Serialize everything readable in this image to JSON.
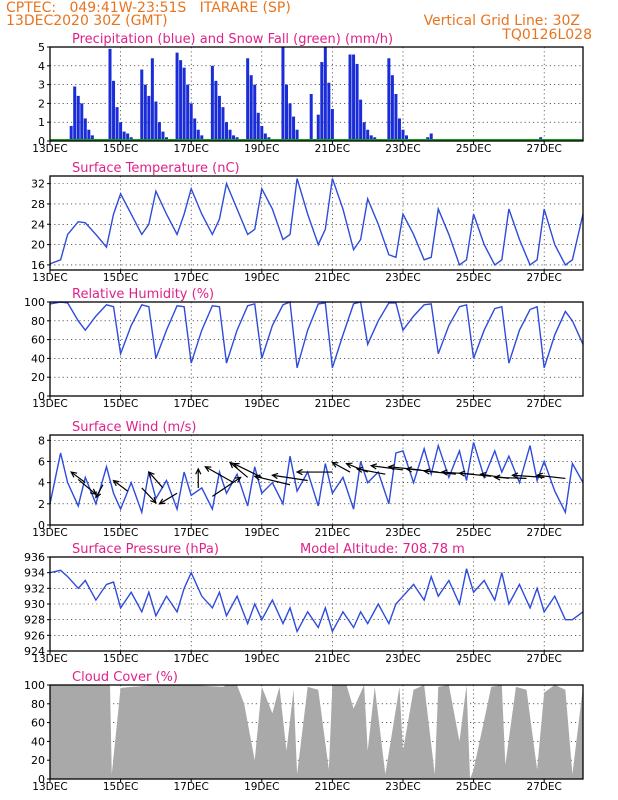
{
  "header": {
    "line1_left": "CPTEC:   049:41W-23:51S   ITARARE (SP)",
    "line2_left": "13DEC2020 30Z (GMT)",
    "line2_right": "Vertical Grid Line: 30Z",
    "line3_right": "TQ0126L028",
    "color": "#e8741e"
  },
  "x_axis_ticks": [
    "13DEC",
    "15DEC",
    "17DEC",
    "19DEC",
    "21DEC",
    "23DEC",
    "25DEC",
    "27DEC"
  ],
  "x_range_days": [
    13.0,
    28.1
  ],
  "colors": {
    "title": "#e0218a",
    "line": "#2e4bdc",
    "precip": "#1a2bd8",
    "snow": "#1a9a1a",
    "cloud": "#a9a9a9",
    "grid": "#000000"
  },
  "chart_data": [
    {
      "id": "precip",
      "type": "bar",
      "title": "Precipitation (blue) and Snow Fall (green) (mm/h)",
      "ylim": [
        0,
        5
      ],
      "yticks": [
        0,
        1,
        2,
        3,
        4,
        5
      ],
      "series": [
        {
          "name": "Precipitation",
          "x": [
            13.6,
            13.7,
            13.8,
            13.9,
            14.0,
            14.1,
            14.2,
            14.7,
            14.8,
            14.9,
            15.0,
            15.1,
            15.2,
            15.3,
            15.6,
            15.7,
            15.8,
            15.9,
            16.0,
            16.1,
            16.2,
            16.3,
            16.6,
            16.7,
            16.8,
            16.9,
            17.0,
            17.1,
            17.2,
            17.3,
            17.6,
            17.7,
            17.8,
            17.9,
            18.0,
            18.1,
            18.2,
            18.3,
            18.6,
            18.7,
            18.8,
            18.9,
            19.0,
            19.1,
            19.2,
            19.6,
            19.7,
            19.8,
            19.9,
            20.0,
            20.4,
            20.6,
            20.7,
            20.8,
            20.9,
            21.0,
            21.5,
            21.6,
            21.7,
            21.8,
            21.9,
            22.0,
            22.1,
            22.2,
            22.6,
            22.7,
            22.8,
            22.9,
            23.0,
            23.1,
            23.5,
            23.7,
            23.8,
            24.0,
            26.9
          ],
          "values": [
            0.8,
            2.9,
            2.4,
            2.0,
            1.2,
            0.6,
            0.3,
            4.9,
            3.2,
            1.8,
            1.0,
            0.5,
            0.4,
            0.2,
            3.8,
            3.0,
            2.4,
            4.4,
            2.1,
            1.0,
            0.5,
            0.2,
            4.7,
            4.3,
            3.9,
            3.0,
            2.0,
            1.2,
            0.6,
            0.3,
            4.0,
            3.2,
            2.4,
            1.8,
            1.0,
            0.6,
            0.3,
            0.2,
            4.4,
            3.5,
            3.0,
            1.5,
            0.8,
            0.4,
            0.2,
            5.0,
            3.0,
            2.0,
            1.3,
            0.6,
            2.5,
            1.4,
            4.2,
            5.0,
            3.1,
            1.7,
            4.6,
            4.6,
            4.1,
            2.2,
            1.0,
            0.6,
            0.3,
            0.2,
            4.4,
            3.5,
            2.5,
            1.2,
            0.6,
            0.3,
            0.1,
            0.2,
            0.4,
            0.1,
            0.2
          ]
        },
        {
          "name": "Snow Fall",
          "x": [
            13.0,
            28.1
          ],
          "values": [
            0.0,
            0.0
          ]
        }
      ]
    },
    {
      "id": "temp",
      "type": "line",
      "title": "Surface Temperature (nC)",
      "ylim": [
        15,
        33.5
      ],
      "yticks": [
        16,
        20,
        24,
        28,
        32
      ],
      "series": [
        {
          "name": "",
          "x": [
            13.0,
            13.3,
            13.5,
            13.8,
            14.0,
            14.3,
            14.6,
            14.8,
            15.0,
            15.3,
            15.6,
            15.8,
            16.0,
            16.3,
            16.6,
            16.8,
            17.0,
            17.3,
            17.6,
            17.8,
            18.0,
            18.3,
            18.6,
            18.8,
            19.0,
            19.3,
            19.6,
            19.8,
            20.0,
            20.3,
            20.6,
            20.8,
            21.0,
            21.3,
            21.6,
            21.8,
            22.0,
            22.3,
            22.6,
            22.8,
            23.0,
            23.3,
            23.6,
            23.8,
            24.0,
            24.3,
            24.6,
            24.8,
            25.0,
            25.3,
            25.6,
            25.8,
            26.0,
            26.3,
            26.6,
            26.8,
            27.0,
            27.3,
            27.6,
            27.8,
            28.1
          ],
          "values": [
            16.2,
            17.0,
            22.0,
            24.5,
            24.3,
            22.0,
            19.5,
            26.0,
            30.0,
            26.0,
            22.0,
            24.0,
            30.5,
            26.0,
            22.0,
            26.0,
            31.0,
            26.0,
            22.0,
            25.0,
            32.0,
            27.0,
            22.0,
            23.0,
            31.0,
            27.0,
            21.0,
            22.0,
            33.0,
            26.0,
            20.0,
            23.0,
            33.0,
            27.0,
            19.0,
            21.0,
            29.0,
            24.0,
            18.0,
            17.5,
            26.0,
            22.0,
            17.0,
            17.5,
            27.0,
            22.0,
            16.0,
            17.0,
            26.0,
            20.0,
            16.0,
            17.0,
            27.0,
            21.0,
            16.0,
            17.0,
            27.0,
            20.0,
            16.0,
            17.0,
            26.0
          ]
        }
      ]
    },
    {
      "id": "rh",
      "type": "line",
      "title": "Relative Humidity (%)",
      "ylim": [
        0,
        100
      ],
      "yticks": [
        0,
        20,
        40,
        60,
        80,
        100
      ],
      "series": [
        {
          "name": "",
          "x": [
            13.0,
            13.3,
            13.5,
            13.8,
            14.0,
            14.3,
            14.6,
            14.8,
            15.0,
            15.3,
            15.6,
            15.8,
            16.0,
            16.3,
            16.6,
            16.8,
            17.0,
            17.3,
            17.6,
            17.8,
            18.0,
            18.3,
            18.6,
            18.8,
            19.0,
            19.3,
            19.6,
            19.8,
            20.0,
            20.3,
            20.6,
            20.8,
            21.0,
            21.3,
            21.6,
            21.8,
            22.0,
            22.3,
            22.6,
            22.8,
            23.0,
            23.3,
            23.6,
            23.8,
            24.0,
            24.3,
            24.6,
            24.8,
            25.0,
            25.3,
            25.6,
            25.8,
            26.0,
            26.3,
            26.6,
            26.8,
            27.0,
            27.3,
            27.6,
            27.8,
            28.1
          ],
          "values": [
            98,
            100,
            99,
            80,
            70,
            85,
            97,
            95,
            45,
            75,
            97,
            95,
            40,
            70,
            96,
            95,
            35,
            70,
            96,
            95,
            35,
            70,
            96,
            98,
            40,
            75,
            97,
            100,
            30,
            70,
            98,
            99,
            30,
            65,
            98,
            100,
            55,
            80,
            99,
            99,
            70,
            85,
            97,
            98,
            45,
            75,
            95,
            97,
            40,
            70,
            93,
            95,
            35,
            70,
            92,
            95,
            30,
            65,
            90,
            80,
            55
          ]
        }
      ]
    },
    {
      "id": "wind",
      "type": "line",
      "title": "Surface Wind (m/s)",
      "ylim": [
        0,
        8.5
      ],
      "yticks": [
        0,
        2,
        4,
        6,
        8
      ],
      "series": [
        {
          "name": "",
          "x": [
            13.0,
            13.3,
            13.5,
            13.8,
            14.0,
            14.3,
            14.6,
            14.8,
            15.0,
            15.3,
            15.6,
            15.8,
            16.0,
            16.3,
            16.6,
            16.8,
            17.0,
            17.3,
            17.6,
            17.8,
            18.0,
            18.3,
            18.6,
            18.8,
            19.0,
            19.3,
            19.6,
            19.8,
            20.0,
            20.3,
            20.6,
            20.8,
            21.0,
            21.3,
            21.6,
            21.8,
            22.0,
            22.3,
            22.6,
            22.8,
            23.0,
            23.3,
            23.6,
            23.8,
            24.0,
            24.3,
            24.6,
            24.8,
            25.0,
            25.3,
            25.6,
            25.8,
            26.0,
            26.3,
            26.6,
            26.8,
            27.0,
            27.3,
            27.6,
            27.8,
            28.1
          ],
          "values": [
            2.0,
            6.8,
            4.0,
            1.8,
            4.5,
            2.0,
            5.5,
            3.0,
            1.5,
            4.0,
            1.2,
            5.0,
            2.5,
            4.2,
            1.5,
            5.0,
            2.8,
            3.5,
            1.5,
            5.0,
            3.0,
            4.8,
            1.8,
            5.5,
            3.0,
            4.0,
            2.0,
            6.5,
            3.2,
            5.0,
            1.8,
            5.8,
            3.0,
            4.5,
            1.5,
            6.0,
            4.0,
            5.0,
            2.0,
            6.8,
            7.0,
            4.0,
            7.2,
            4.8,
            7.5,
            4.5,
            7.0,
            4.2,
            7.8,
            4.5,
            7.0,
            5.0,
            6.5,
            4.0,
            7.5,
            4.2,
            6.0,
            3.2,
            1.2,
            5.8,
            4.0
          ]
        }
      ],
      "arrows": [
        {
          "x": 14.0,
          "y": 4.0,
          "dx": -0.4,
          "dy": 1.0
        },
        {
          "x": 13.8,
          "y": 4.3,
          "dx": 0.5,
          "dy": -1.4
        },
        {
          "x": 14.5,
          "y": 3.8,
          "dx": -0.2,
          "dy": -1.2
        },
        {
          "x": 15.2,
          "y": 3.2,
          "dx": -0.4,
          "dy": 1.0
        },
        {
          "x": 15.6,
          "y": 3.5,
          "dx": 0.4,
          "dy": -1.4
        },
        {
          "x": 16.2,
          "y": 3.5,
          "dx": -0.4,
          "dy": 1.5
        },
        {
          "x": 16.6,
          "y": 3.0,
          "dx": -0.5,
          "dy": -1.0
        },
        {
          "x": 17.2,
          "y": 3.5,
          "dx": 0.0,
          "dy": 1.8
        },
        {
          "x": 17.6,
          "y": 2.7,
          "dx": 0.8,
          "dy": 1.8
        },
        {
          "x": 18.2,
          "y": 4.0,
          "dx": -0.8,
          "dy": 1.5
        },
        {
          "x": 18.6,
          "y": 4.5,
          "dx": -0.5,
          "dy": 1.4
        },
        {
          "x": 19.0,
          "y": 4.5,
          "dx": -0.8,
          "dy": 1.3
        },
        {
          "x": 19.8,
          "y": 3.8,
          "dx": -1.0,
          "dy": 0.8
        },
        {
          "x": 20.3,
          "y": 4.2,
          "dx": -1.0,
          "dy": 0.5
        },
        {
          "x": 21.0,
          "y": 5.0,
          "dx": -1.0,
          "dy": 0.0
        },
        {
          "x": 21.5,
          "y": 5.0,
          "dx": -0.5,
          "dy": 0.9
        },
        {
          "x": 22.0,
          "y": 5.0,
          "dx": -0.6,
          "dy": 0.8
        },
        {
          "x": 22.5,
          "y": 4.8,
          "dx": -0.8,
          "dy": 0.5
        },
        {
          "x": 23.0,
          "y": 5.2,
          "dx": -0.9,
          "dy": 0.4
        },
        {
          "x": 23.5,
          "y": 5.2,
          "dx": -0.9,
          "dy": 0.3
        },
        {
          "x": 24.0,
          "y": 5.0,
          "dx": -0.9,
          "dy": 0.3
        },
        {
          "x": 24.5,
          "y": 4.8,
          "dx": -0.9,
          "dy": 0.3
        },
        {
          "x": 25.0,
          "y": 4.8,
          "dx": -0.9,
          "dy": 0.2
        },
        {
          "x": 25.5,
          "y": 4.6,
          "dx": -0.9,
          "dy": 0.3
        },
        {
          "x": 26.0,
          "y": 4.4,
          "dx": -0.8,
          "dy": 0.4
        },
        {
          "x": 26.5,
          "y": 4.4,
          "dx": -0.9,
          "dy": 0.1
        },
        {
          "x": 27.0,
          "y": 4.5,
          "dx": -0.9,
          "dy": 0.2
        },
        {
          "x": 27.6,
          "y": 4.4,
          "dx": -0.8,
          "dy": 0.3
        }
      ]
    },
    {
      "id": "pres",
      "type": "line",
      "title": "Surface Pressure (hPa)",
      "annotation": "Model Altitude:  708.78  m",
      "ylim": [
        924,
        936
      ],
      "yticks": [
        924,
        926,
        928,
        930,
        932,
        934,
        936
      ],
      "series": [
        {
          "name": "",
          "x": [
            13.0,
            13.3,
            13.5,
            13.8,
            14.0,
            14.3,
            14.6,
            14.8,
            15.0,
            15.3,
            15.6,
            15.8,
            16.0,
            16.3,
            16.6,
            16.8,
            17.0,
            17.3,
            17.6,
            17.8,
            18.0,
            18.3,
            18.6,
            18.8,
            19.0,
            19.3,
            19.6,
            19.8,
            20.0,
            20.3,
            20.6,
            20.8,
            21.0,
            21.3,
            21.6,
            21.8,
            22.0,
            22.3,
            22.6,
            22.8,
            23.0,
            23.3,
            23.6,
            23.8,
            24.0,
            24.3,
            24.6,
            24.8,
            25.0,
            25.3,
            25.6,
            25.8,
            26.0,
            26.3,
            26.6,
            26.8,
            27.0,
            27.3,
            27.6,
            27.8,
            28.1
          ],
          "values": [
            934.0,
            934.3,
            933.5,
            932.0,
            933.0,
            930.5,
            932.5,
            932.8,
            929.5,
            931.5,
            929.0,
            931.5,
            928.5,
            931.0,
            929.0,
            932.0,
            934.0,
            931.0,
            929.5,
            931.5,
            928.5,
            931.0,
            927.5,
            930.0,
            928.0,
            930.5,
            927.5,
            929.5,
            926.5,
            929.0,
            927.0,
            929.5,
            926.5,
            929.0,
            927.0,
            929.0,
            927.5,
            930.0,
            927.5,
            930.0,
            931.0,
            932.5,
            930.5,
            933.5,
            931.0,
            933.0,
            930.0,
            934.5,
            931.5,
            933.0,
            930.5,
            934.0,
            930.0,
            932.5,
            929.5,
            932.0,
            929.0,
            931.0,
            928.0,
            928.0,
            929.0
          ]
        }
      ]
    },
    {
      "id": "cloud",
      "type": "area",
      "title": "Cloud Cover (%)",
      "ylim": [
        0,
        100
      ],
      "yticks": [
        0,
        20,
        40,
        60,
        80,
        100
      ],
      "series": [
        {
          "name": "",
          "x": [
            13.0,
            14.0,
            14.7,
            14.75,
            15.0,
            16.0,
            17.0,
            17.9,
            18.0,
            18.3,
            18.5,
            18.8,
            19.0,
            19.3,
            19.5,
            19.7,
            19.9,
            20.0,
            20.3,
            20.6,
            20.9,
            21.0,
            21.4,
            21.6,
            21.9,
            22.0,
            22.2,
            22.5,
            22.9,
            23.0,
            23.3,
            23.6,
            23.9,
            24.0,
            24.3,
            24.6,
            24.8,
            24.9,
            25.0,
            25.2,
            25.5,
            25.8,
            25.9,
            26.2,
            26.5,
            26.8,
            27.0,
            27.3,
            27.6,
            27.8,
            28.1
          ],
          "values": [
            100,
            100,
            100,
            5,
            97,
            100,
            100,
            98,
            100,
            100,
            80,
            20,
            98,
            70,
            98,
            30,
            95,
            5,
            98,
            95,
            10,
            100,
            100,
            75,
            100,
            30,
            98,
            5,
            98,
            30,
            95,
            100,
            5,
            98,
            100,
            40,
            100,
            0,
            10,
            45,
            98,
            100,
            15,
            98,
            95,
            10,
            92,
            100,
            95,
            5,
            98
          ]
        }
      ]
    }
  ]
}
